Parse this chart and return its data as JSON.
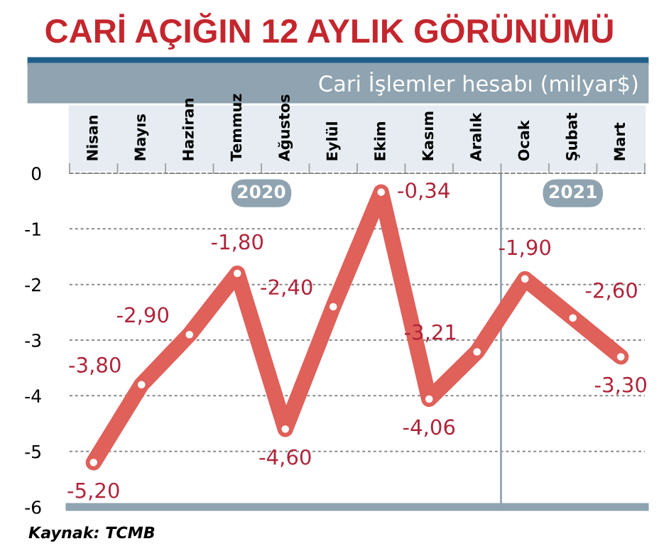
{
  "chart_data": {
    "type": "line",
    "title": "CARİ AÇIĞIN 12 AYLIK GÖRÜNÜMÜ",
    "subtitle": "Cari İşlemler hesabı (milyar$)",
    "categories": [
      "Nisan",
      "Mayıs",
      "Haziran",
      "Temmuz",
      "Ağustos",
      "Eylül",
      "Ekim",
      "Kasım",
      "Aralık",
      "Ocak",
      "Şubat",
      "Mart"
    ],
    "series": [
      {
        "color": "#e0605a",
        "values": [
          -5.2,
          -3.8,
          -2.9,
          -1.8,
          -4.6,
          -2.4,
          -0.34,
          -4.06,
          -3.21,
          -1.9,
          -2.6,
          -3.3
        ],
        "value_labels": [
          "-5,20",
          "-3,80",
          "-2,90",
          "-1,80",
          "-4,60",
          "-2,40",
          "-0,34",
          "-4,06",
          "-3,21",
          "-1,90",
          "-2,60",
          "-3,30"
        ]
      }
    ],
    "ylim": [
      -6,
      0
    ],
    "yticks": [
      0,
      -1,
      -2,
      -3,
      -4,
      -5,
      -6
    ],
    "grid": "y",
    "marker": "circle",
    "line_style": "solid",
    "ref_lines": [
      {
        "axis": "x",
        "value": "Ocak",
        "color": "#8fa3b0"
      }
    ],
    "annotations": [
      "2020",
      "2021",
      "Kaynak: TCMB"
    ]
  }
}
